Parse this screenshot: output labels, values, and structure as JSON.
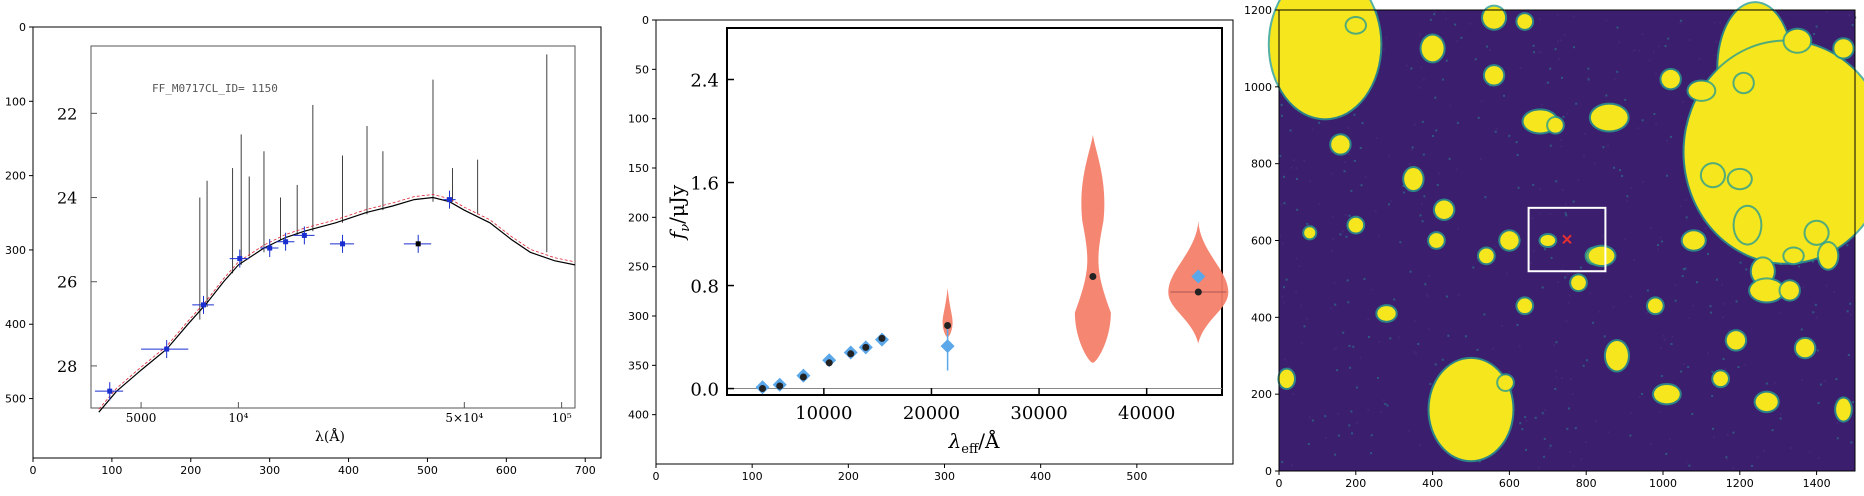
{
  "chart_data": [
    {
      "type": "image",
      "panel": "left",
      "xlim": [
        0,
        720
      ],
      "ylim": [
        580,
        0
      ],
      "xticks": [
        0,
        100,
        200,
        300,
        400,
        500,
        600,
        700
      ],
      "yticks": [
        0,
        100,
        200,
        300,
        400,
        500
      ],
      "inner_plot": {
        "type": "scatter",
        "object_label": "FF_M0717CL_ID= 1150",
        "xlabel": "λ(Å)",
        "xscale": "log",
        "x_tick_labels": [
          "5000",
          "10⁴",
          "5×10⁴",
          "10⁵"
        ],
        "x_tick_values": [
          5000,
          10000,
          50000,
          100000
        ],
        "y_tick_labels": [
          "22",
          "24",
          "26",
          "28"
        ],
        "y_tick_values": [
          22,
          24,
          26,
          28
        ],
        "xlim": [
          3500,
          110000
        ],
        "ylim": [
          29.0,
          20.4
        ],
        "photometry": [
          {
            "x": 4000,
            "y": 28.6,
            "xerr": 400
          },
          {
            "x": 6000,
            "y": 27.6,
            "xerr": 1000
          },
          {
            "x": 7800,
            "y": 26.55,
            "xerr": 600
          },
          {
            "x": 10100,
            "y": 25.45,
            "xerr": 700
          },
          {
            "x": 12500,
            "y": 25.2,
            "xerr": 800
          },
          {
            "x": 14000,
            "y": 25.05,
            "xerr": 900
          },
          {
            "x": 16000,
            "y": 24.9,
            "xerr": 1200
          },
          {
            "x": 21000,
            "y": 25.1,
            "xerr": 1800
          },
          {
            "x": 36000,
            "y": 25.1,
            "xerr": 3500,
            "color": "#000000"
          },
          {
            "x": 45000,
            "y": 24.05,
            "xerr": 2000
          }
        ]
      }
    },
    {
      "type": "scatter",
      "panel": "middle",
      "xlabel": "λeff/Å",
      "ylabel": "fν/μJy",
      "xlim": [
        1000,
        47000
      ],
      "ylim": [
        -0.05,
        2.8
      ],
      "x_tick_values": [
        10000,
        20000,
        30000,
        40000
      ],
      "x_tick_labels": [
        "10000",
        "20000",
        "30000",
        "40000"
      ],
      "y_tick_values": [
        0.0,
        0.8,
        1.6,
        2.4
      ],
      "y_tick_labels": [
        "0.0",
        "0.8",
        "1.6",
        "2.4"
      ],
      "outer_xlim": [
        0,
        600
      ],
      "outer_ylim": [
        450,
        0
      ],
      "outer_xticks": [
        0,
        100,
        200,
        300,
        400,
        500
      ],
      "outer_yticks": [
        0,
        50,
        100,
        150,
        200,
        250,
        300,
        350,
        400
      ],
      "observed": {
        "color": "#5aa7ea",
        "x": [
          4300,
          5900,
          8100,
          10500,
          12500,
          13900,
          15400,
          21500,
          44800
        ],
        "y": [
          0.01,
          0.03,
          0.1,
          0.22,
          0.28,
          0.32,
          0.38,
          0.33,
          0.87
        ]
      },
      "model": {
        "color": "#222222",
        "x": [
          4300,
          5900,
          8100,
          10500,
          12500,
          13900,
          15400,
          21500,
          35000,
          44800
        ],
        "y": [
          0.0,
          0.02,
          0.09,
          0.2,
          0.27,
          0.32,
          0.39,
          0.49,
          0.87,
          0.75
        ]
      },
      "violins": [
        {
          "x": 21500,
          "min": 0.4,
          "max": 0.78
        },
        {
          "x": 35000,
          "min": 0.2,
          "max": 1.97
        },
        {
          "x": 44800,
          "min": 0.35,
          "max": 1.3
        }
      ],
      "violin_color": "#f4806a",
      "error_bar": {
        "x": 21500,
        "low": 0.14,
        "high": 0.5
      }
    },
    {
      "type": "image",
      "panel": "right",
      "xlim": [
        0,
        1500
      ],
      "ylim": [
        0,
        1200
      ],
      "xticks": [
        0,
        200,
        400,
        600,
        800,
        1000,
        1200,
        1400
      ],
      "yticks": [
        0,
        200,
        400,
        600,
        800,
        1000,
        1200
      ],
      "background_color": "#3b1f6e",
      "source_color": "#f5e61e",
      "cutout_box": {
        "x0": 650,
        "x1": 850,
        "y0": 520,
        "y1": 685
      },
      "target": {
        "x": 750,
        "y": 603,
        "color": "#e63030"
      }
    }
  ]
}
